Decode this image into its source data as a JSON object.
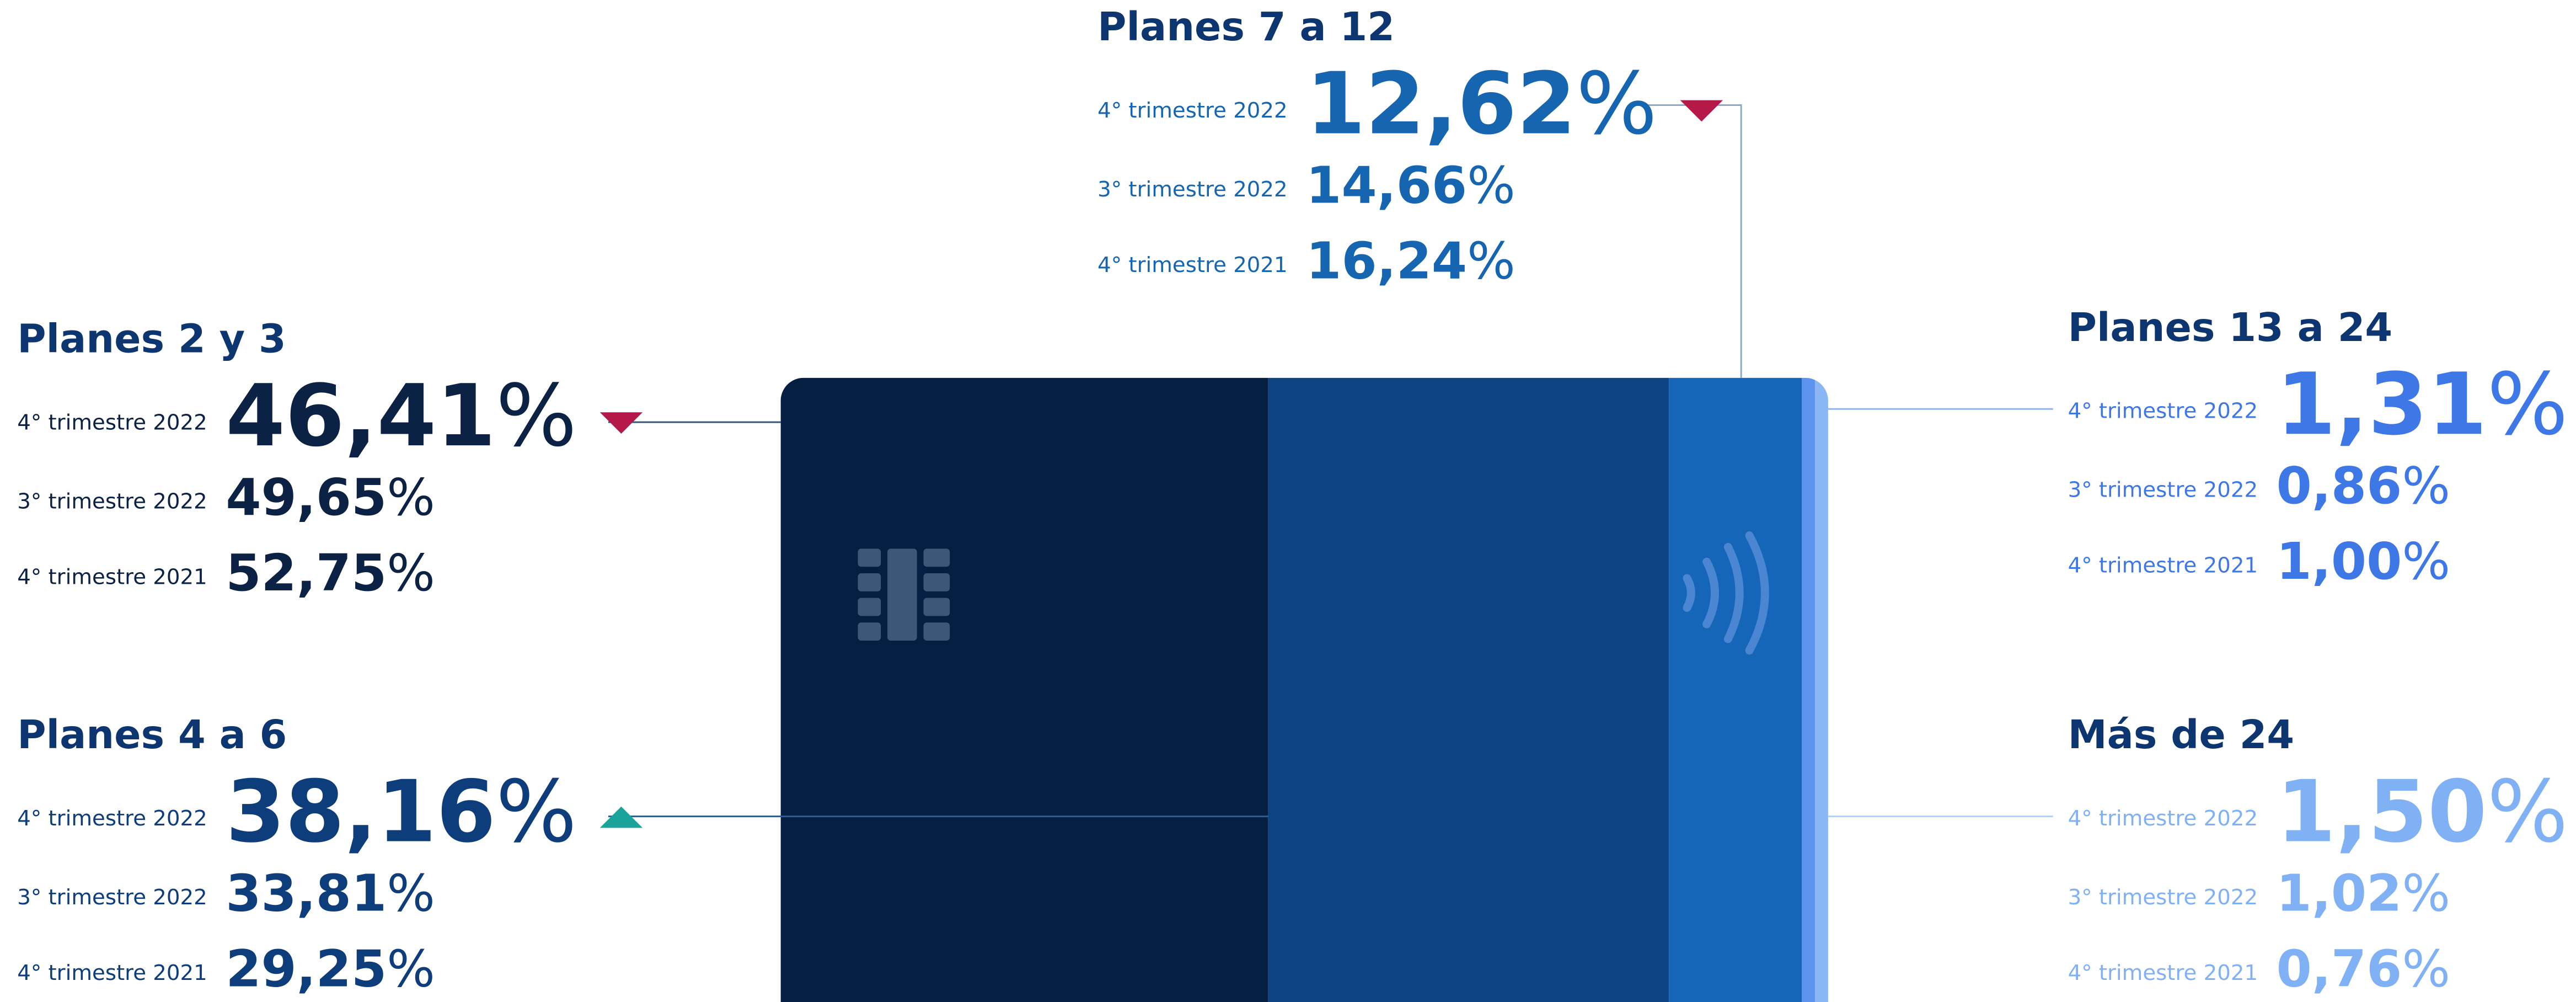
{
  "unit": "%",
  "groups": [
    {
      "title": "Planes 7 a 12",
      "color": "#1565b0",
      "trend": "down",
      "rows": [
        {
          "label": "4° trimestre 2022",
          "value": "12,62"
        },
        {
          "label": "3° trimestre 2022",
          "value": "14,66"
        },
        {
          "label": "4° trimestre 2021",
          "value": "16,24"
        }
      ]
    },
    {
      "title": "Planes 2 y 3",
      "color": "#0b2244",
      "trend": "down",
      "rows": [
        {
          "label": "4° trimestre 2022",
          "value": "46,41"
        },
        {
          "label": "3° trimestre 2022",
          "value": "49,65"
        },
        {
          "label": "4° trimestre 2021",
          "value": "52,75"
        }
      ]
    },
    {
      "title": "Planes 4 a 6",
      "color": "#0d3d7a",
      "trend": "up",
      "rows": [
        {
          "label": "4° trimestre 2022",
          "value": "38,16"
        },
        {
          "label": "3° trimestre 2022",
          "value": "33,81"
        },
        {
          "label": "4° trimestre 2021",
          "value": "29,25"
        }
      ]
    },
    {
      "title": "Planes 13 a 24",
      "color": "#3e78e6",
      "trend": "up",
      "rows": [
        {
          "label": "4° trimestre 2022",
          "value": "1,31"
        },
        {
          "label": "3° trimestre 2022",
          "value": "0,86"
        },
        {
          "label": "4° trimestre 2021",
          "value": "1,00"
        }
      ]
    },
    {
      "title": "Más de 24",
      "color": "#80b1f5",
      "trend": "up",
      "rows": [
        {
          "label": "4° trimestre 2022",
          "value": "1,50"
        },
        {
          "label": "3° trimestre 2022",
          "value": "1,02"
        },
        {
          "label": "4° trimestre 2021",
          "value": "0,76"
        }
      ]
    }
  ]
}
